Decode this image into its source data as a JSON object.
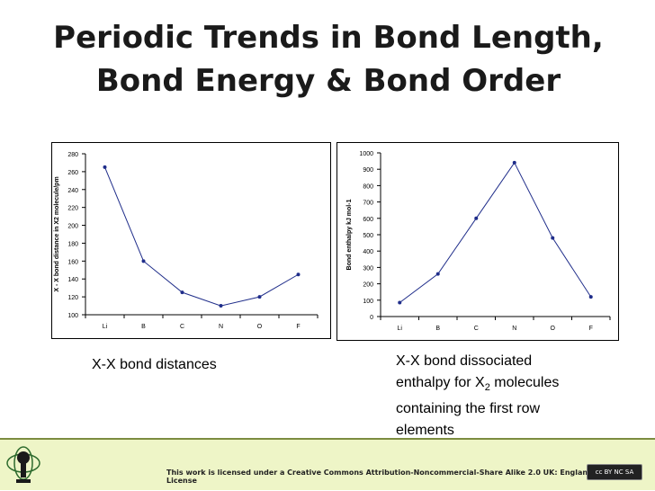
{
  "slide": {
    "title_line1": "Periodic Trends in Bond Length,",
    "title_line2": "Bond Energy & Bond Order",
    "caption_left": "X-X bond distances",
    "caption_right_before": "X-X bond dissociated enthalpy for X",
    "caption_right_sub": "2",
    "caption_right_after": " molecules containing the first row elements",
    "license": "This work is licensed under a Creative Commons Attribution-Noncommercial-Share Alike 2.0 UK: England & Wales License",
    "badge": "cc BY NC SA"
  },
  "chart_data": [
    {
      "type": "line",
      "categories": [
        "Li",
        "B",
        "C",
        "N",
        "O",
        "F"
      ],
      "values": [
        265,
        160,
        125,
        110,
        120,
        145
      ],
      "ylabel": "X - X bond distance in X2 molecule/pm",
      "ylim": [
        100,
        280
      ],
      "yticks": [
        100,
        120,
        140,
        160,
        180,
        200,
        220,
        240,
        260,
        280
      ],
      "color": "#1f2d8a",
      "grid": false
    },
    {
      "type": "line",
      "categories": [
        "Li",
        "B",
        "C",
        "N",
        "O",
        "F"
      ],
      "values": [
        85,
        260,
        600,
        940,
        480,
        120
      ],
      "ylabel": "Bond enthalpy kJ mol-1",
      "ylim": [
        0,
        1000
      ],
      "yticks": [
        0,
        100,
        200,
        300,
        400,
        500,
        600,
        700,
        800,
        900,
        1000
      ],
      "color": "#1f2d8a",
      "grid": false
    }
  ]
}
